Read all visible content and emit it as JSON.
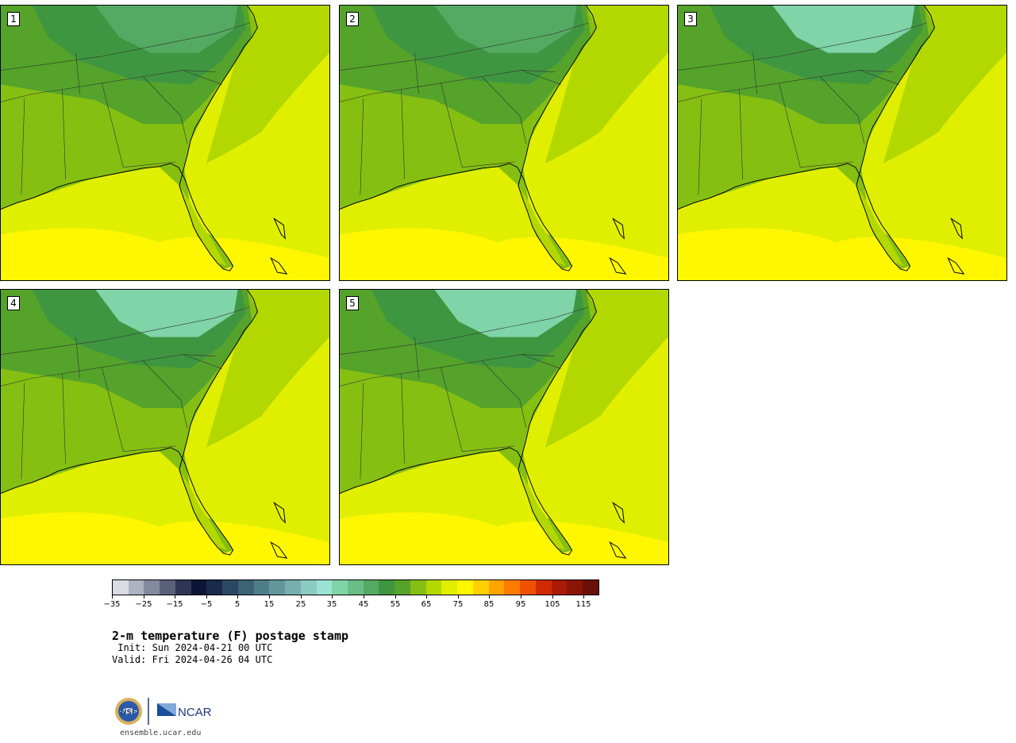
{
  "members": [
    {
      "label": "1"
    },
    {
      "label": "2"
    },
    {
      "label": "3"
    },
    {
      "label": "4"
    },
    {
      "label": "5"
    }
  ],
  "colorbar": {
    "colors": [
      "#d9dde3",
      "#aeb3c2",
      "#838a9f",
      "#59607a",
      "#2e3654",
      "#0b1535",
      "#1a2a4a",
      "#2b4762",
      "#3b6275",
      "#4d7e88",
      "#61969b",
      "#76afae",
      "#8ccbc4",
      "#9de3d4",
      "#7fd4a8",
      "#6abe85",
      "#55aa63",
      "#3f9640",
      "#55a32a",
      "#85bf12",
      "#b3d800",
      "#e0ef00",
      "#fff700",
      "#ffcf00",
      "#ffa500",
      "#ff7a00",
      "#f05000",
      "#d02a00",
      "#aa1a05",
      "#8a1505",
      "#6a1008"
    ],
    "ticks": [
      "−35",
      "−25",
      "−15",
      "−5",
      "5",
      "15",
      "25",
      "35",
      "45",
      "55",
      "65",
      "75",
      "85",
      "95",
      "105",
      "115"
    ]
  },
  "title": "2-m temperature (F) postage stamp",
  "init": " Init: Sun 2024-04-21 00 UTC",
  "valid": "Valid: Fri 2024-04-26 04 UTC",
  "logos": {
    "nsf": "NSF",
    "ncar": "NCAR"
  },
  "site": "ensemble.ucar.edu"
}
